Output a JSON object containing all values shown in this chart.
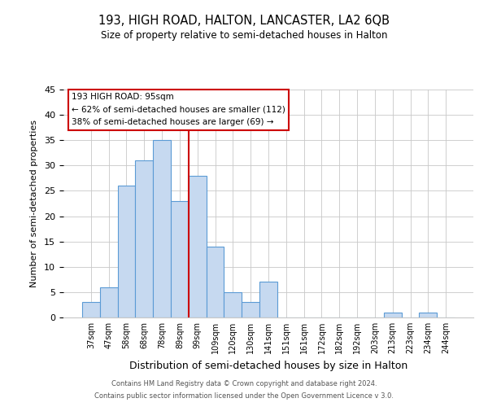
{
  "title_line1": "193, HIGH ROAD, HALTON, LANCASTER, LA2 6QB",
  "title_line2": "Size of property relative to semi-detached houses in Halton",
  "xlabel": "Distribution of semi-detached houses by size in Halton",
  "ylabel": "Number of semi-detached properties",
  "bar_labels": [
    "37sqm",
    "47sqm",
    "58sqm",
    "68sqm",
    "78sqm",
    "89sqm",
    "99sqm",
    "109sqm",
    "120sqm",
    "130sqm",
    "141sqm",
    "151sqm",
    "161sqm",
    "172sqm",
    "182sqm",
    "192sqm",
    "203sqm",
    "213sqm",
    "223sqm",
    "234sqm",
    "244sqm"
  ],
  "bar_heights": [
    3,
    6,
    26,
    31,
    35,
    23,
    28,
    14,
    5,
    3,
    7,
    0,
    0,
    0,
    0,
    0,
    0,
    1,
    0,
    1,
    0
  ],
  "bar_color": "#c6d9f0",
  "bar_edge_color": "#5b9bd5",
  "vline_pos": 5.5,
  "vline_color": "#cc0000",
  "ylim": [
    0,
    45
  ],
  "yticks": [
    0,
    5,
    10,
    15,
    20,
    25,
    30,
    35,
    40,
    45
  ],
  "annotation_title": "193 HIGH ROAD: 95sqm",
  "annotation_line1": "← 62% of semi-detached houses are smaller (112)",
  "annotation_line2": "38% of semi-detached houses are larger (69) →",
  "footer_line1": "Contains HM Land Registry data © Crown copyright and database right 2024.",
  "footer_line2": "Contains public sector information licensed under the Open Government Licence v 3.0.",
  "background_color": "#ffffff",
  "grid_color": "#c8c8c8"
}
